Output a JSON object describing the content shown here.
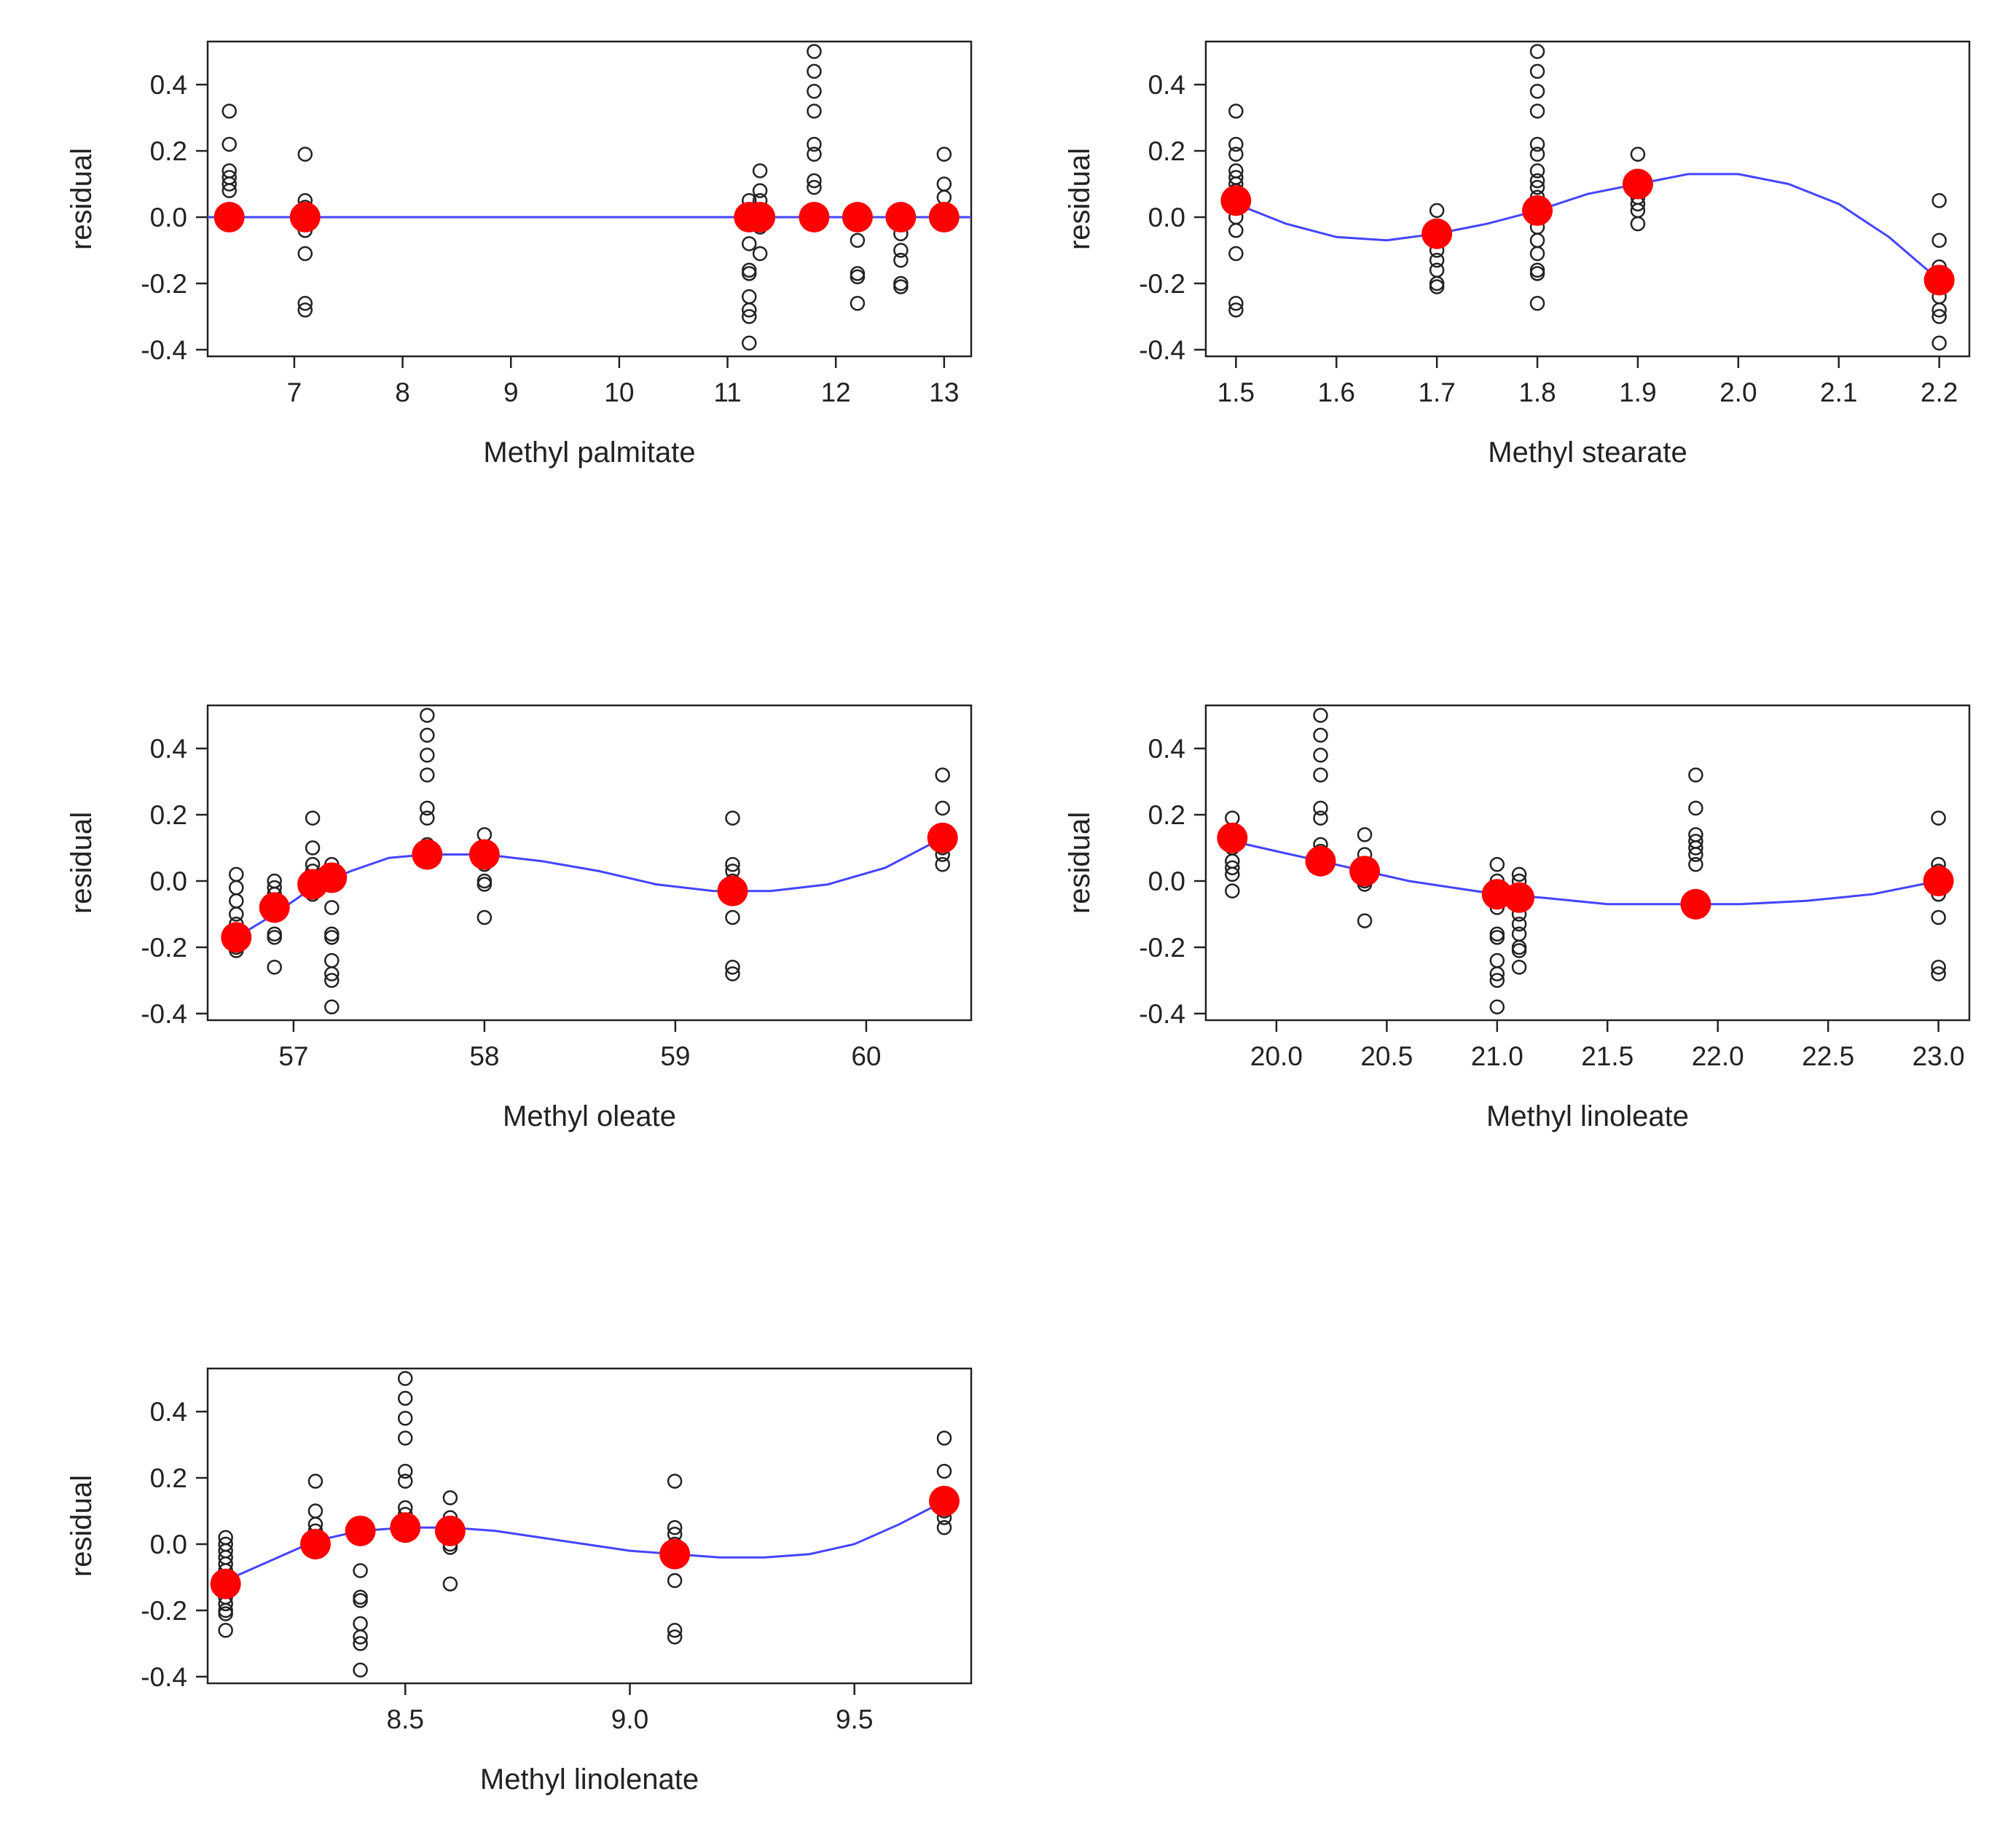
{
  "colors": {
    "points": "#222222",
    "means": "#ff0000",
    "curve": "#4444ff",
    "frame": "#222222"
  },
  "chart_data": [
    {
      "type": "scatter",
      "xlabel": "Methyl palmitate",
      "ylabel": "residual",
      "xlim": [
        6.2,
        13.25
      ],
      "ylim": [
        -0.42,
        0.53
      ],
      "xticks": [
        7,
        8,
        9,
        10,
        11,
        12,
        13
      ],
      "xtick_labels": [
        "7",
        "8",
        "9",
        "10",
        "11",
        "12",
        "13"
      ],
      "yticks": [
        -0.4,
        -0.2,
        0.0,
        0.2,
        0.4
      ],
      "ytick_labels": [
        "-0.4",
        "-0.2",
        "0.0",
        "0.2",
        "0.4"
      ],
      "groups": [
        {
          "x": 6.4,
          "values": [
            0.32,
            0.22,
            0.14,
            0.12,
            0.1,
            0.08
          ]
        },
        {
          "x": 7.1,
          "values": [
            0.19,
            0.05,
            0.03,
            0.0,
            -0.04,
            -0.11,
            -0.26,
            -0.28
          ]
        },
        {
          "x": 11.2,
          "values": [
            0.05,
            0.0,
            -0.08,
            -0.16,
            -0.17,
            -0.24,
            -0.28,
            -0.3,
            -0.38
          ]
        },
        {
          "x": 11.3,
          "values": [
            0.14,
            0.08,
            0.05,
            -0.03,
            -0.11
          ]
        },
        {
          "x": 11.8,
          "values": [
            0.5,
            0.44,
            0.38,
            0.32,
            0.22,
            0.19,
            0.11,
            0.09
          ]
        },
        {
          "x": 12.2,
          "values": [
            0.0,
            -0.07,
            -0.17,
            -0.18,
            -0.26
          ]
        },
        {
          "x": 12.6,
          "values": [
            0.02,
            -0.05,
            -0.1,
            -0.13,
            -0.2,
            -0.21
          ]
        },
        {
          "x": 13.0,
          "values": [
            0.19,
            0.1,
            0.06,
            0.0
          ]
        }
      ],
      "means": [
        {
          "x": 6.4,
          "y": 0.0
        },
        {
          "x": 7.1,
          "y": 0.0
        },
        {
          "x": 11.2,
          "y": 0.0
        },
        {
          "x": 11.3,
          "y": 0.0
        },
        {
          "x": 11.8,
          "y": 0.0
        },
        {
          "x": 12.2,
          "y": 0.0
        },
        {
          "x": 12.6,
          "y": 0.0
        },
        {
          "x": 13.0,
          "y": 0.0
        }
      ],
      "curve": [
        {
          "x": 6.2,
          "y": 0.0
        },
        {
          "x": 13.25,
          "y": 0.0
        }
      ]
    },
    {
      "type": "scatter",
      "xlabel": "Methyl stearate",
      "ylabel": "residual",
      "xlim": [
        1.47,
        2.23
      ],
      "ylim": [
        -0.42,
        0.53
      ],
      "xticks": [
        1.5,
        1.6,
        1.7,
        1.8,
        1.9,
        2.0,
        2.1,
        2.2
      ],
      "xtick_labels": [
        "1.5",
        "1.6",
        "1.7",
        "1.8",
        "1.9",
        "2.0",
        "2.1",
        "2.2"
      ],
      "yticks": [
        -0.4,
        -0.2,
        0.0,
        0.2,
        0.4
      ],
      "ytick_labels": [
        "-0.4",
        "-0.2",
        "0.0",
        "0.2",
        "0.4"
      ],
      "groups": [
        {
          "x": 1.5,
          "values": [
            0.32,
            0.22,
            0.19,
            0.14,
            0.12,
            0.1,
            0.08,
            0.05,
            0.03,
            0.0,
            -0.04,
            -0.11,
            -0.26,
            -0.28
          ]
        },
        {
          "x": 1.7,
          "values": [
            0.02,
            -0.03,
            -0.1,
            -0.13,
            -0.16,
            -0.2,
            -0.21
          ]
        },
        {
          "x": 1.8,
          "values": [
            0.5,
            0.44,
            0.38,
            0.32,
            0.22,
            0.19,
            0.14,
            0.11,
            0.09,
            0.06,
            0.02,
            -0.03,
            -0.07,
            -0.11,
            -0.16,
            -0.17,
            -0.26
          ]
        },
        {
          "x": 1.9,
          "values": [
            0.19,
            0.1,
            0.06,
            0.04,
            0.02,
            -0.02
          ]
        },
        {
          "x": 2.2,
          "values": [
            0.05,
            -0.07,
            -0.15,
            -0.18,
            -0.24,
            -0.28,
            -0.3,
            -0.38
          ]
        }
      ],
      "means": [
        {
          "x": 1.5,
          "y": 0.05
        },
        {
          "x": 1.7,
          "y": -0.05
        },
        {
          "x": 1.8,
          "y": 0.02
        },
        {
          "x": 1.9,
          "y": 0.1
        },
        {
          "x": 2.2,
          "y": -0.19
        }
      ],
      "curve": [
        {
          "x": 1.5,
          "y": 0.04
        },
        {
          "x": 1.55,
          "y": -0.02
        },
        {
          "x": 1.6,
          "y": -0.06
        },
        {
          "x": 1.65,
          "y": -0.07
        },
        {
          "x": 1.7,
          "y": -0.05
        },
        {
          "x": 1.75,
          "y": -0.02
        },
        {
          "x": 1.8,
          "y": 0.02
        },
        {
          "x": 1.85,
          "y": 0.07
        },
        {
          "x": 1.9,
          "y": 0.1
        },
        {
          "x": 1.95,
          "y": 0.13
        },
        {
          "x": 2.0,
          "y": 0.13
        },
        {
          "x": 2.05,
          "y": 0.1
        },
        {
          "x": 2.1,
          "y": 0.04
        },
        {
          "x": 2.15,
          "y": -0.06
        },
        {
          "x": 2.2,
          "y": -0.19
        }
      ]
    },
    {
      "type": "scatter",
      "xlabel": "Methyl oleate",
      "ylabel": "residual",
      "xlim": [
        56.55,
        60.55
      ],
      "ylim": [
        -0.42,
        0.53
      ],
      "xticks": [
        57,
        58,
        59,
        60
      ],
      "xtick_labels": [
        "57",
        "58",
        "59",
        "60"
      ],
      "yticks": [
        -0.4,
        -0.2,
        0.0,
        0.2,
        0.4
      ],
      "ytick_labels": [
        "-0.4",
        "-0.2",
        "0.0",
        "0.2",
        "0.4"
      ],
      "groups": [
        {
          "x": 56.7,
          "values": [
            0.02,
            -0.02,
            -0.06,
            -0.1,
            -0.13,
            -0.16,
            -0.2,
            -0.21
          ]
        },
        {
          "x": 56.9,
          "values": [
            0.0,
            -0.02,
            -0.04,
            -0.07,
            -0.16,
            -0.17,
            -0.26
          ]
        },
        {
          "x": 57.1,
          "values": [
            0.19,
            0.1,
            0.05,
            0.03,
            0.0,
            -0.04
          ]
        },
        {
          "x": 57.2,
          "values": [
            0.05,
            0.0,
            -0.08,
            -0.16,
            -0.17,
            -0.24,
            -0.28,
            -0.3,
            -0.38
          ]
        },
        {
          "x": 57.7,
          "values": [
            0.5,
            0.44,
            0.38,
            0.32,
            0.22,
            0.19,
            0.11,
            0.09
          ]
        },
        {
          "x": 58.0,
          "values": [
            0.14,
            0.08,
            0.05,
            0.0,
            -0.01,
            -0.11
          ]
        },
        {
          "x": 59.3,
          "values": [
            0.19,
            0.05,
            0.03,
            0.0,
            -0.04,
            -0.11,
            -0.26,
            -0.28
          ]
        },
        {
          "x": 60.4,
          "values": [
            0.32,
            0.22,
            0.14,
            0.12,
            0.1,
            0.08,
            0.05
          ]
        }
      ],
      "means": [
        {
          "x": 56.7,
          "y": -0.17
        },
        {
          "x": 56.9,
          "y": -0.08
        },
        {
          "x": 57.1,
          "y": -0.01
        },
        {
          "x": 57.2,
          "y": 0.01
        },
        {
          "x": 57.7,
          "y": 0.08
        },
        {
          "x": 58.0,
          "y": 0.08
        },
        {
          "x": 59.3,
          "y": -0.03
        },
        {
          "x": 60.4,
          "y": 0.13
        }
      ],
      "curve": [
        {
          "x": 56.7,
          "y": -0.17
        },
        {
          "x": 56.9,
          "y": -0.1
        },
        {
          "x": 57.1,
          "y": -0.02
        },
        {
          "x": 57.3,
          "y": 0.03
        },
        {
          "x": 57.5,
          "y": 0.07
        },
        {
          "x": 57.7,
          "y": 0.08
        },
        {
          "x": 58.0,
          "y": 0.08
        },
        {
          "x": 58.3,
          "y": 0.06
        },
        {
          "x": 58.6,
          "y": 0.03
        },
        {
          "x": 58.9,
          "y": -0.01
        },
        {
          "x": 59.2,
          "y": -0.03
        },
        {
          "x": 59.5,
          "y": -0.03
        },
        {
          "x": 59.8,
          "y": -0.01
        },
        {
          "x": 60.1,
          "y": 0.04
        },
        {
          "x": 60.4,
          "y": 0.13
        }
      ]
    },
    {
      "type": "scatter",
      "xlabel": "Methyl linoleate",
      "ylabel": "residual",
      "xlim": [
        19.68,
        23.14
      ],
      "ylim": [
        -0.42,
        0.53
      ],
      "xticks": [
        20.0,
        20.5,
        21.0,
        21.5,
        22.0,
        22.5,
        23.0
      ],
      "xtick_labels": [
        "20.0",
        "20.5",
        "21.0",
        "21.5",
        "22.0",
        "22.5",
        "23.0"
      ],
      "yticks": [
        -0.4,
        -0.2,
        0.0,
        0.2,
        0.4
      ],
      "ytick_labels": [
        "-0.4",
        "-0.2",
        "0.0",
        "0.2",
        "0.4"
      ],
      "groups": [
        {
          "x": 19.8,
          "values": [
            0.19,
            0.14,
            0.1,
            0.06,
            0.04,
            0.02,
            -0.03
          ]
        },
        {
          "x": 20.2,
          "values": [
            0.5,
            0.44,
            0.38,
            0.32,
            0.22,
            0.19,
            0.11,
            0.09
          ]
        },
        {
          "x": 20.4,
          "values": [
            0.14,
            0.08,
            0.05,
            0.0,
            -0.01,
            -0.12
          ]
        },
        {
          "x": 21.0,
          "values": [
            0.05,
            0.0,
            -0.08,
            -0.16,
            -0.17,
            -0.24,
            -0.28,
            -0.3,
            -0.38
          ]
        },
        {
          "x": 21.1,
          "values": [
            0.02,
            0.0,
            -0.03,
            -0.07,
            -0.1,
            -0.13,
            -0.16,
            -0.2,
            -0.21,
            -0.26
          ]
        },
        {
          "x": 21.9,
          "values": [
            0.32,
            0.22,
            0.14,
            0.12,
            0.1,
            0.08,
            0.05
          ]
        },
        {
          "x": 23.0,
          "values": [
            0.19,
            0.05,
            0.03,
            0.0,
            -0.04,
            -0.11,
            -0.26,
            -0.28
          ]
        }
      ],
      "means": [
        {
          "x": 19.8,
          "y": 0.13
        },
        {
          "x": 20.2,
          "y": 0.06
        },
        {
          "x": 20.4,
          "y": 0.03
        },
        {
          "x": 21.0,
          "y": -0.04
        },
        {
          "x": 21.1,
          "y": -0.05
        },
        {
          "x": 21.9,
          "y": -0.07
        },
        {
          "x": 23.0,
          "y": 0.0
        }
      ],
      "curve": [
        {
          "x": 19.8,
          "y": 0.12
        },
        {
          "x": 20.0,
          "y": 0.09
        },
        {
          "x": 20.2,
          "y": 0.06
        },
        {
          "x": 20.4,
          "y": 0.03
        },
        {
          "x": 20.6,
          "y": 0.0
        },
        {
          "x": 20.8,
          "y": -0.02
        },
        {
          "x": 21.0,
          "y": -0.04
        },
        {
          "x": 21.2,
          "y": -0.05
        },
        {
          "x": 21.5,
          "y": -0.07
        },
        {
          "x": 21.8,
          "y": -0.07
        },
        {
          "x": 22.1,
          "y": -0.07
        },
        {
          "x": 22.4,
          "y": -0.06
        },
        {
          "x": 22.7,
          "y": -0.04
        },
        {
          "x": 23.0,
          "y": 0.0
        }
      ]
    },
    {
      "type": "scatter",
      "xlabel": "Methyl linolenate",
      "ylabel": "residual",
      "xlim": [
        8.06,
        9.76
      ],
      "ylim": [
        -0.42,
        0.53
      ],
      "xticks": [
        8.5,
        9.0,
        9.5
      ],
      "xtick_labels": [
        "8.5",
        "9.0",
        "9.5"
      ],
      "yticks": [
        -0.4,
        -0.2,
        0.0,
        0.2,
        0.4
      ],
      "ytick_labels": [
        "-0.4",
        "-0.2",
        "0.0",
        "0.2",
        "0.4"
      ],
      "groups": [
        {
          "x": 8.1,
          "values": [
            0.02,
            0.0,
            -0.02,
            -0.04,
            -0.06,
            -0.08,
            -0.1,
            -0.13,
            -0.16,
            -0.18,
            -0.2,
            -0.21,
            -0.26
          ]
        },
        {
          "x": 8.3,
          "values": [
            0.19,
            0.1,
            0.06,
            0.04,
            0.02,
            -0.02
          ]
        },
        {
          "x": 8.4,
          "values": [
            -0.08,
            -0.16,
            -0.17,
            -0.24,
            -0.28,
            -0.3,
            -0.38
          ]
        },
        {
          "x": 8.5,
          "values": [
            0.5,
            0.44,
            0.38,
            0.32,
            0.22,
            0.19,
            0.11,
            0.09
          ]
        },
        {
          "x": 8.6,
          "values": [
            0.14,
            0.08,
            0.05,
            0.0,
            -0.01,
            -0.12
          ]
        },
        {
          "x": 9.1,
          "values": [
            0.19,
            0.05,
            0.03,
            0.0,
            -0.04,
            -0.11,
            -0.26,
            -0.28
          ]
        },
        {
          "x": 9.7,
          "values": [
            0.32,
            0.22,
            0.14,
            0.12,
            0.1,
            0.08,
            0.05
          ]
        }
      ],
      "means": [
        {
          "x": 8.1,
          "y": -0.12
        },
        {
          "x": 8.3,
          "y": 0.0
        },
        {
          "x": 8.4,
          "y": 0.04
        },
        {
          "x": 8.5,
          "y": 0.05
        },
        {
          "x": 8.6,
          "y": 0.04
        },
        {
          "x": 9.1,
          "y": -0.03
        },
        {
          "x": 9.7,
          "y": 0.13
        }
      ],
      "curve": [
        {
          "x": 8.1,
          "y": -0.11
        },
        {
          "x": 8.2,
          "y": -0.05
        },
        {
          "x": 8.3,
          "y": 0.01
        },
        {
          "x": 8.4,
          "y": 0.04
        },
        {
          "x": 8.5,
          "y": 0.05
        },
        {
          "x": 8.6,
          "y": 0.05
        },
        {
          "x": 8.7,
          "y": 0.04
        },
        {
          "x": 8.8,
          "y": 0.02
        },
        {
          "x": 8.9,
          "y": 0.0
        },
        {
          "x": 9.0,
          "y": -0.02
        },
        {
          "x": 9.1,
          "y": -0.03
        },
        {
          "x": 9.2,
          "y": -0.04
        },
        {
          "x": 9.3,
          "y": -0.04
        },
        {
          "x": 9.4,
          "y": -0.03
        },
        {
          "x": 9.5,
          "y": 0.0
        },
        {
          "x": 9.6,
          "y": 0.06
        },
        {
          "x": 9.7,
          "y": 0.13
        }
      ]
    }
  ]
}
